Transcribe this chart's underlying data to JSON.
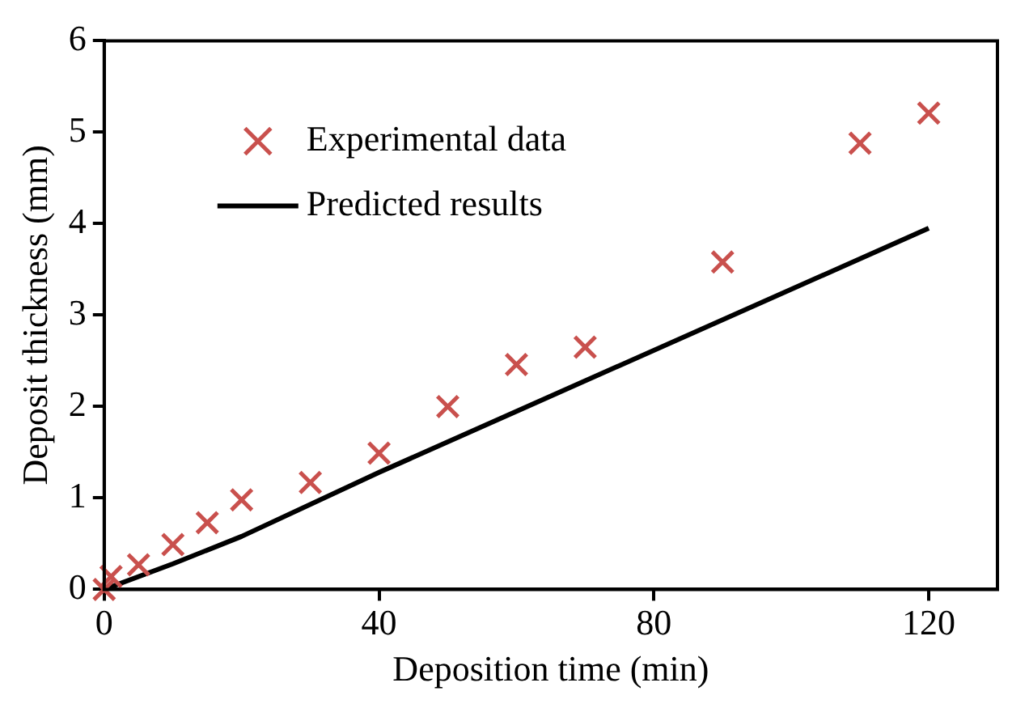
{
  "chart_data": {
    "type": "scatter",
    "xlabel": "Deposition time (min)",
    "ylabel": "Deposit thickness (mm)",
    "xlim": [
      0,
      130
    ],
    "xticks": [
      0,
      40,
      80,
      120
    ],
    "ylim": [
      0,
      6
    ],
    "yticks": [
      0,
      1,
      2,
      3,
      4,
      5,
      6
    ],
    "grid": false,
    "legend": "top left",
    "marker": "cross",
    "series": [
      {
        "name": "Experimental data",
        "color": "#c9504d",
        "x": [
          0,
          1,
          5,
          10,
          15,
          20,
          30,
          40,
          50,
          60,
          70,
          90,
          110,
          120
        ],
        "values": [
          0,
          0.14,
          0.27,
          0.49,
          0.73,
          0.98,
          1.17,
          1.49,
          2.0,
          2.46,
          2.65,
          3.58,
          4.88,
          5.21
        ]
      },
      {
        "name": "Predicted results",
        "type": "line",
        "color": "#000000",
        "marker": "none",
        "line_style": "solid",
        "x": [
          0,
          10,
          20,
          40,
          120
        ],
        "values": [
          0,
          0.28,
          0.58,
          1.28,
          3.95
        ]
      }
    ]
  }
}
